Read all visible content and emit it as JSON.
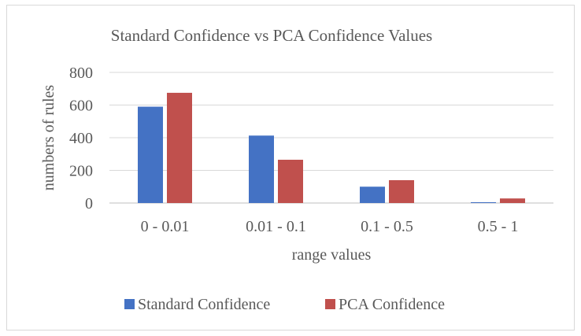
{
  "chart_data": {
    "type": "bar",
    "title": "Standard Confidence vs PCA Confidence Values",
    "xlabel": "range values",
    "ylabel": "numbers of rules",
    "categories": [
      "0 - 0.01",
      "0.01 - 0.1",
      "0.1 - 0.5",
      "0.5 - 1"
    ],
    "series": [
      {
        "name": "Standard Confidence",
        "color": "#4472c4",
        "values": [
          590,
          413,
          100,
          5
        ]
      },
      {
        "name": "PCA Confidence",
        "color": "#c0504d",
        "values": [
          675,
          265,
          140,
          28
        ]
      }
    ],
    "ylim": [
      0,
      800
    ],
    "yticks": [
      "0",
      "200",
      "400",
      "600",
      "800"
    ],
    "grid": true,
    "legend_position": "bottom"
  }
}
